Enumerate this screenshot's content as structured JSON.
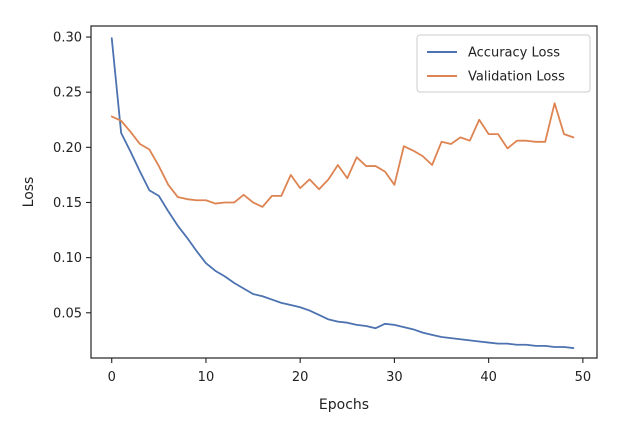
{
  "chart_data": {
    "type": "line",
    "xlabel": "Epochs",
    "ylabel": "Loss",
    "xlim": [
      -2.2,
      51.5
    ],
    "ylim": [
      0.009,
      0.31
    ],
    "xticks": [
      0,
      10,
      20,
      30,
      40,
      50
    ],
    "yticks": [
      0.05,
      0.1,
      0.15,
      0.2,
      0.25,
      0.3
    ],
    "ytick_labels": [
      "0.05",
      "0.10",
      "0.15",
      "0.20",
      "0.25",
      "0.30"
    ],
    "grid": false,
    "legend_position": "top-right",
    "x": [
      0,
      1,
      2,
      3,
      4,
      5,
      6,
      7,
      8,
      9,
      10,
      11,
      12,
      13,
      14,
      15,
      16,
      17,
      18,
      19,
      20,
      21,
      22,
      23,
      24,
      25,
      26,
      27,
      28,
      29,
      30,
      31,
      32,
      33,
      34,
      35,
      36,
      37,
      38,
      39,
      40,
      41,
      42,
      43,
      44,
      45,
      46,
      47,
      48,
      49
    ],
    "series": [
      {
        "name": "Accuracy Loss",
        "color": "#4c72b0",
        "values": [
          0.299,
          0.213,
          0.196,
          0.178,
          0.161,
          0.156,
          0.142,
          0.129,
          0.118,
          0.106,
          0.095,
          0.088,
          0.083,
          0.077,
          0.072,
          0.067,
          0.065,
          0.062,
          0.059,
          0.057,
          0.055,
          0.052,
          0.048,
          0.044,
          0.042,
          0.041,
          0.039,
          0.038,
          0.036,
          0.04,
          0.039,
          0.037,
          0.035,
          0.032,
          0.03,
          0.028,
          0.027,
          0.026,
          0.025,
          0.024,
          0.023,
          0.022,
          0.022,
          0.021,
          0.021,
          0.02,
          0.02,
          0.019,
          0.019,
          0.018
        ]
      },
      {
        "name": "Validation Loss",
        "color": "#dd8452",
        "values": [
          0.228,
          0.224,
          0.214,
          0.203,
          0.198,
          0.183,
          0.166,
          0.155,
          0.153,
          0.152,
          0.152,
          0.149,
          0.15,
          0.15,
          0.157,
          0.15,
          0.146,
          0.156,
          0.156,
          0.175,
          0.163,
          0.171,
          0.162,
          0.171,
          0.184,
          0.172,
          0.191,
          0.183,
          0.183,
          0.178,
          0.166,
          0.201,
          0.197,
          0.192,
          0.184,
          0.205,
          0.203,
          0.209,
          0.206,
          0.225,
          0.212,
          0.212,
          0.199,
          0.206,
          0.206,
          0.205,
          0.205,
          0.24,
          0.212,
          0.209
        ]
      }
    ]
  }
}
